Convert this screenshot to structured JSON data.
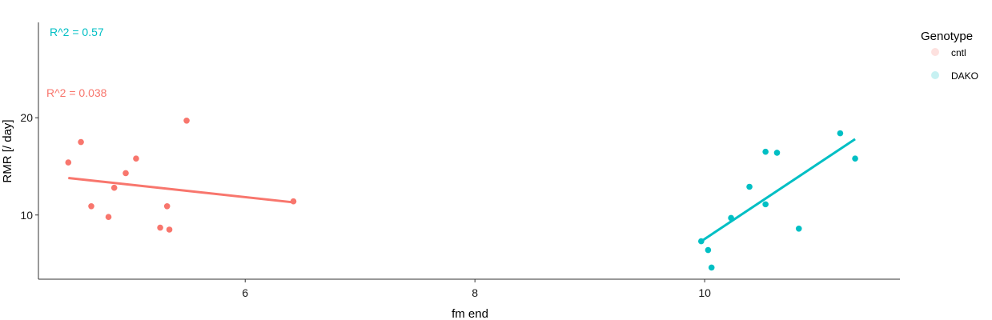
{
  "chart_data": {
    "type": "scatter",
    "title": "",
    "xlabel": "fm end",
    "ylabel": "RMR [/ day]",
    "xlim": [
      4.2,
      11.7
    ],
    "ylim": [
      3.4,
      29.8
    ],
    "xticks": [
      6,
      8,
      10
    ],
    "yticks": [
      10,
      20
    ],
    "grid": false,
    "legend": {
      "title": "Genotype",
      "position": "right",
      "entries": [
        {
          "label": "cntl",
          "color": "#F8766D"
        },
        {
          "label": "DAKO",
          "color": "#00BFC4"
        }
      ]
    },
    "annotations": [
      {
        "text": "R^2 = 0.57",
        "series": "DAKO",
        "color": "#00BFC4"
      },
      {
        "text": "R^2 = 0.038",
        "series": "cntl",
        "color": "#F8766D"
      }
    ],
    "series": [
      {
        "name": "cntl",
        "color": "#F8766D",
        "points": [
          {
            "x": 4.46,
            "y": 15.4
          },
          {
            "x": 4.57,
            "y": 17.5
          },
          {
            "x": 4.66,
            "y": 10.9
          },
          {
            "x": 4.81,
            "y": 9.8
          },
          {
            "x": 4.86,
            "y": 12.8
          },
          {
            "x": 4.96,
            "y": 14.3
          },
          {
            "x": 5.05,
            "y": 15.8
          },
          {
            "x": 5.26,
            "y": 8.7
          },
          {
            "x": 5.32,
            "y": 10.9
          },
          {
            "x": 5.34,
            "y": 8.5
          },
          {
            "x": 5.49,
            "y": 19.7
          },
          {
            "x": 6.42,
            "y": 11.4
          }
        ],
        "fit": {
          "x": [
            4.46,
            6.42
          ],
          "y": [
            13.8,
            11.3
          ]
        }
      },
      {
        "name": "DAKO",
        "color": "#00BFC4",
        "points": [
          {
            "x": 9.97,
            "y": 7.3
          },
          {
            "x": 10.03,
            "y": 6.4
          },
          {
            "x": 10.06,
            "y": 4.6
          },
          {
            "x": 10.23,
            "y": 9.7
          },
          {
            "x": 10.39,
            "y": 12.9
          },
          {
            "x": 10.53,
            "y": 16.5
          },
          {
            "x": 10.53,
            "y": 11.1
          },
          {
            "x": 10.63,
            "y": 16.4
          },
          {
            "x": 10.82,
            "y": 8.6
          },
          {
            "x": 11.18,
            "y": 18.4
          },
          {
            "x": 11.31,
            "y": 15.8
          }
        ],
        "fit": {
          "x": [
            9.97,
            11.31
          ],
          "y": [
            7.3,
            17.8
          ]
        }
      }
    ]
  }
}
